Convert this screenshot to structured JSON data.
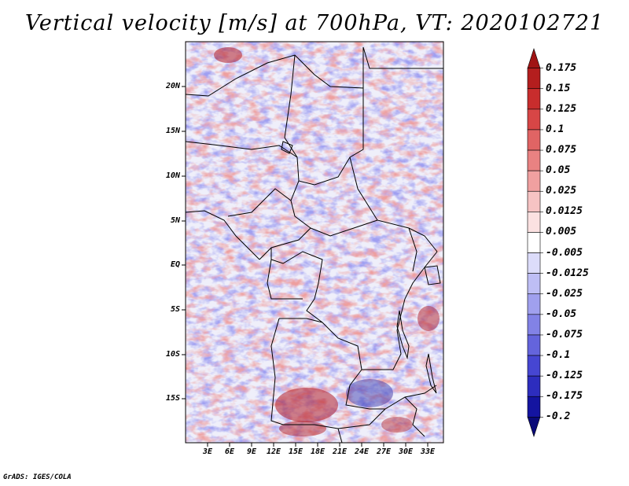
{
  "title": "Vertical velocity [m/s] at 700hPa, VT: 2020102721",
  "credit": "GrADS: IGES/COLA",
  "lat_labels": [
    "20N",
    "15N",
    "10N",
    "5N",
    "EQ",
    "5S",
    "10S",
    "15S"
  ],
  "lon_labels": [
    "3E",
    "6E",
    "9E",
    "12E",
    "15E",
    "18E",
    "21E",
    "24E",
    "27E",
    "30E",
    "33E"
  ],
  "colorbar": {
    "levels": [
      "0.175",
      "0.15",
      "0.125",
      "0.1",
      "0.075",
      "0.05",
      "0.025",
      "0.0125",
      "0.005",
      "-0.005",
      "-0.0125",
      "-0.025",
      "-0.05",
      "-0.075",
      "-0.1",
      "-0.125",
      "-0.175",
      "-0.2"
    ],
    "colors": [
      "#a01414",
      "#b41e1e",
      "#c82d2d",
      "#d74646",
      "#e06464",
      "#e98282",
      "#f0a0a0",
      "#f6c3c3",
      "#fbe1e1",
      "#ffffff",
      "#dcdcfa",
      "#bebef5",
      "#a0a0ee",
      "#8282e6",
      "#6464dc",
      "#4646d2",
      "#2d2dbe",
      "#1414a0",
      "#0a0a78"
    ]
  }
}
